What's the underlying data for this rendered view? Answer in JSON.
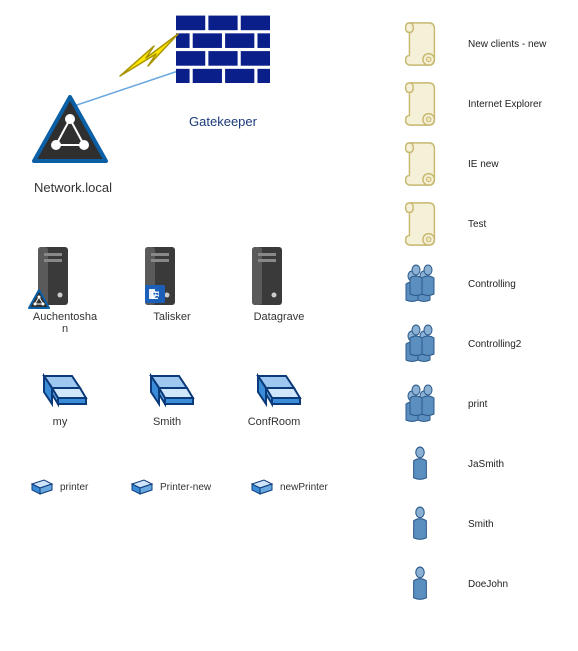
{
  "colors": {
    "brick": "#0b1f8a",
    "brickBg": "#ffffff",
    "triangleFill": "#2f2f2f",
    "triangleStroke": "#0b5fa5",
    "lightningFill": "#ffe600",
    "lightningStroke": "#8a7a00",
    "serverDark": "#3a3a3a",
    "serverLight": "#6a6a6a",
    "exchange": "#1b5fb8",
    "laptopFill": "#3b8cd8",
    "laptopStroke": "#0b3a7a",
    "printerFill": "#3b8cd8",
    "scrollFill": "#f5f0d8",
    "scrollStroke": "#c8b870",
    "personFill": "#5b8fc0",
    "personStroke": "#2b5a8a"
  },
  "top": {
    "network": "Network.local",
    "gatekeeper": "Gatekeeper"
  },
  "servers": [
    {
      "label": "Auchentoshan",
      "badge": "network"
    },
    {
      "label": "Talisker",
      "badge": "exchange"
    },
    {
      "label": "Datagrave",
      "badge": "none"
    }
  ],
  "laptops": [
    {
      "label": "my"
    },
    {
      "label": "Smith"
    },
    {
      "label": "ConfRoom"
    }
  ],
  "printers": [
    {
      "label": "printer"
    },
    {
      "label": "Printer-new"
    },
    {
      "label": "newPrinter"
    }
  ],
  "side": [
    {
      "type": "scroll",
      "label": "New clients - new"
    },
    {
      "type": "scroll",
      "label": "Internet Explorer"
    },
    {
      "type": "scroll",
      "label": "IE new"
    },
    {
      "type": "scroll",
      "label": "Test"
    },
    {
      "type": "group",
      "label": "Controlling"
    },
    {
      "type": "group",
      "label": "Controlling2"
    },
    {
      "type": "group",
      "label": "print"
    },
    {
      "type": "person",
      "label": "JaSmith"
    },
    {
      "type": "person",
      "label": "Smith"
    },
    {
      "type": "person",
      "label": "DoeJohn"
    }
  ]
}
